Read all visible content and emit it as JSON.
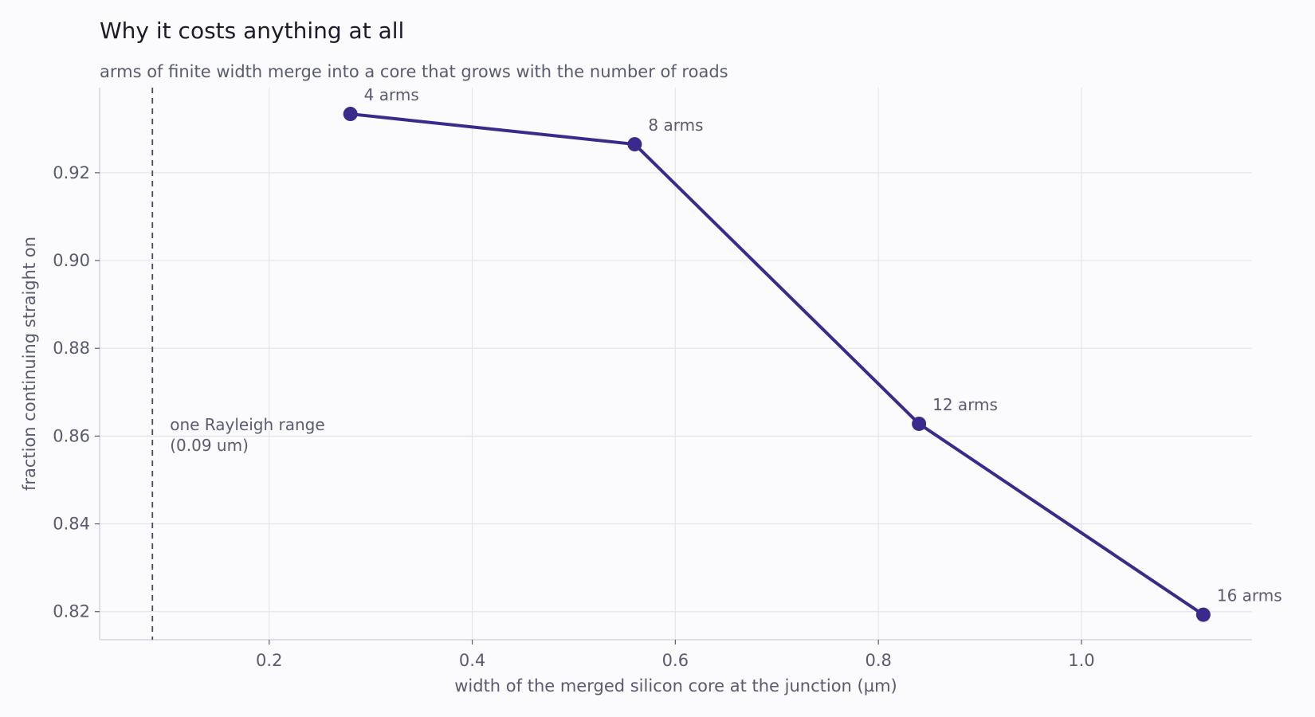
{
  "chart_data": {
    "type": "line",
    "title": "Why it costs anything at all",
    "subtitle": "arms of finite width merge into a core that grows with the number of roads",
    "xlabel": "width of the merged silicon core at the junction  (µm)",
    "ylabel": "fraction continuing straight on",
    "xlim": [
      0.033,
      1.168
    ],
    "ylim": [
      0.8136,
      0.9394
    ],
    "x_ticks": [
      0.2,
      0.4,
      0.6,
      0.8,
      1.0
    ],
    "x_tick_labels": [
      "0.2",
      "0.4",
      "0.6",
      "0.8",
      "1.0"
    ],
    "y_ticks": [
      0.82,
      0.84,
      0.86,
      0.88,
      0.9,
      0.92
    ],
    "y_tick_labels": [
      "0.82",
      "0.84",
      "0.86",
      "0.88",
      "0.90",
      "0.92"
    ],
    "grid": true,
    "legend": "none",
    "series": [
      {
        "color": "#3b2a8c",
        "points": [
          {
            "x": 0.28,
            "y": 0.9334,
            "label": "4 arms"
          },
          {
            "x": 0.56,
            "y": 0.9265,
            "label": "8 arms"
          },
          {
            "x": 0.84,
            "y": 0.8628,
            "label": "12 arms"
          },
          {
            "x": 1.12,
            "y": 0.8193,
            "label": "16 arms"
          }
        ]
      }
    ],
    "reference_line": {
      "orientation": "vertical",
      "x": 0.085,
      "style": "dashed",
      "color": "#4a4a5c",
      "label_lines": [
        "one Rayleigh range",
        "(0.09 um)"
      ]
    }
  }
}
